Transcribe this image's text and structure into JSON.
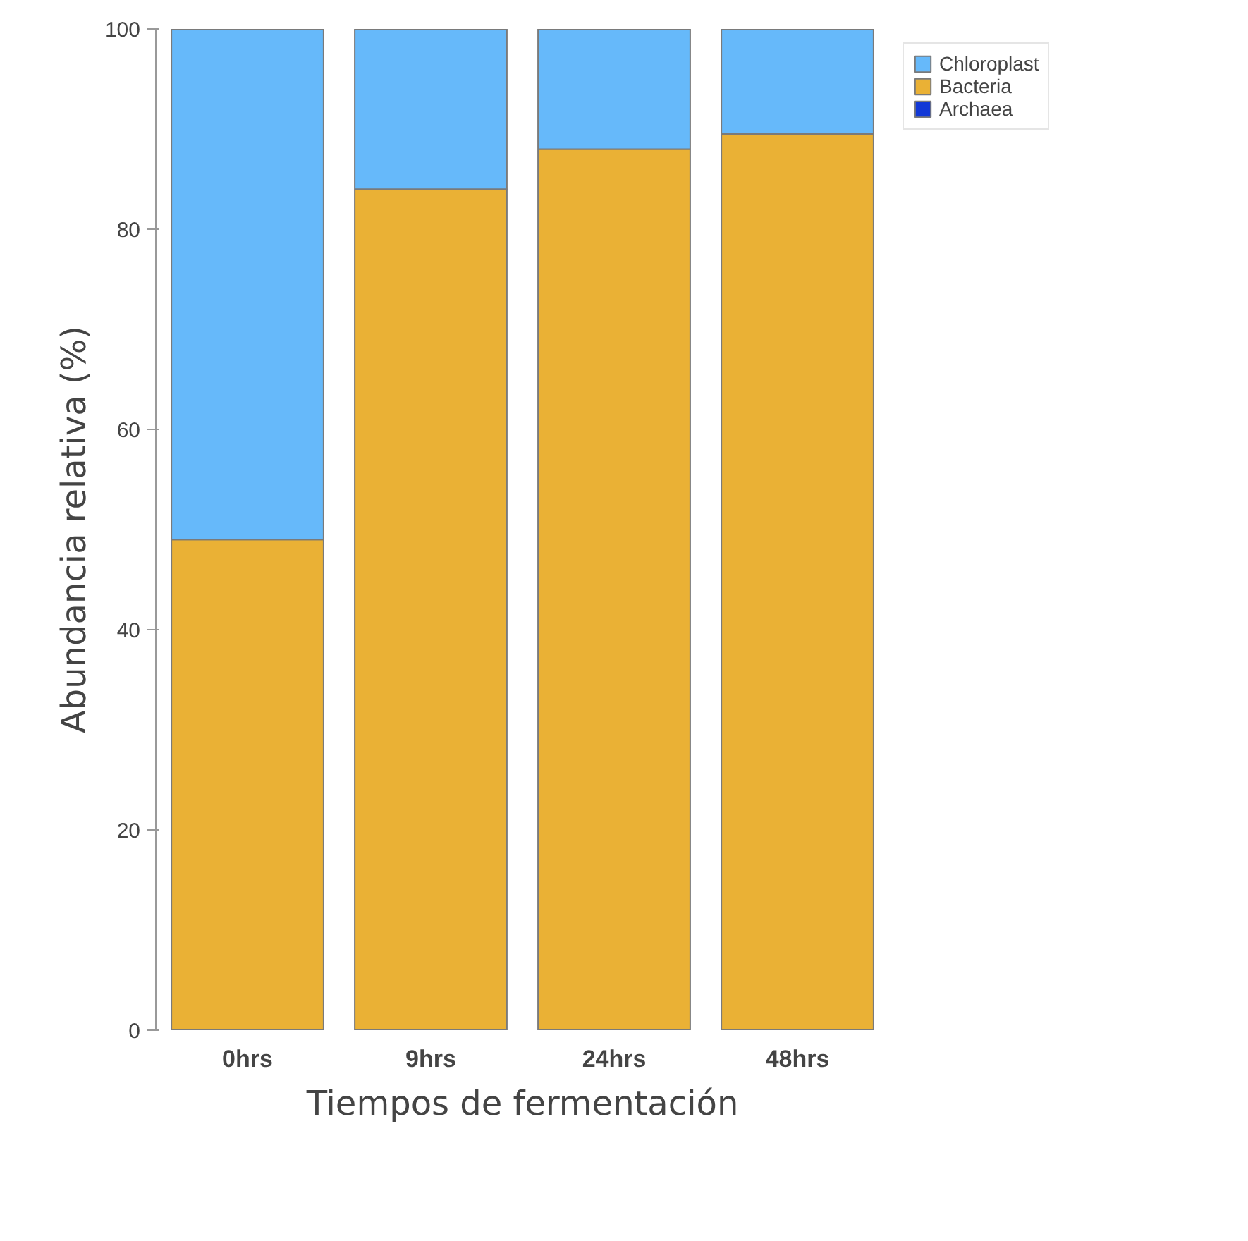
{
  "chart_data": {
    "type": "bar",
    "stacked": true,
    "xlabel": "Tiempos de fermentación",
    "ylabel": "Abundancia relativa (%)",
    "categories": [
      "0hrs",
      "9hrs",
      "24hrs",
      "48hrs"
    ],
    "series": [
      {
        "name": "Archaea",
        "color": "#1238d6",
        "values": [
          0,
          0,
          0,
          0
        ]
      },
      {
        "name": "Bacteria",
        "color": "#eab135",
        "values": [
          49,
          84,
          88,
          89.5
        ]
      },
      {
        "name": "Chloroplast",
        "color": "#66b9fa",
        "values": [
          51,
          16,
          12,
          10.5
        ]
      }
    ],
    "ylim": [
      0,
      100
    ],
    "yticks": [
      0,
      20,
      40,
      60,
      80,
      100
    ],
    "grid": false,
    "legend": "top right"
  }
}
